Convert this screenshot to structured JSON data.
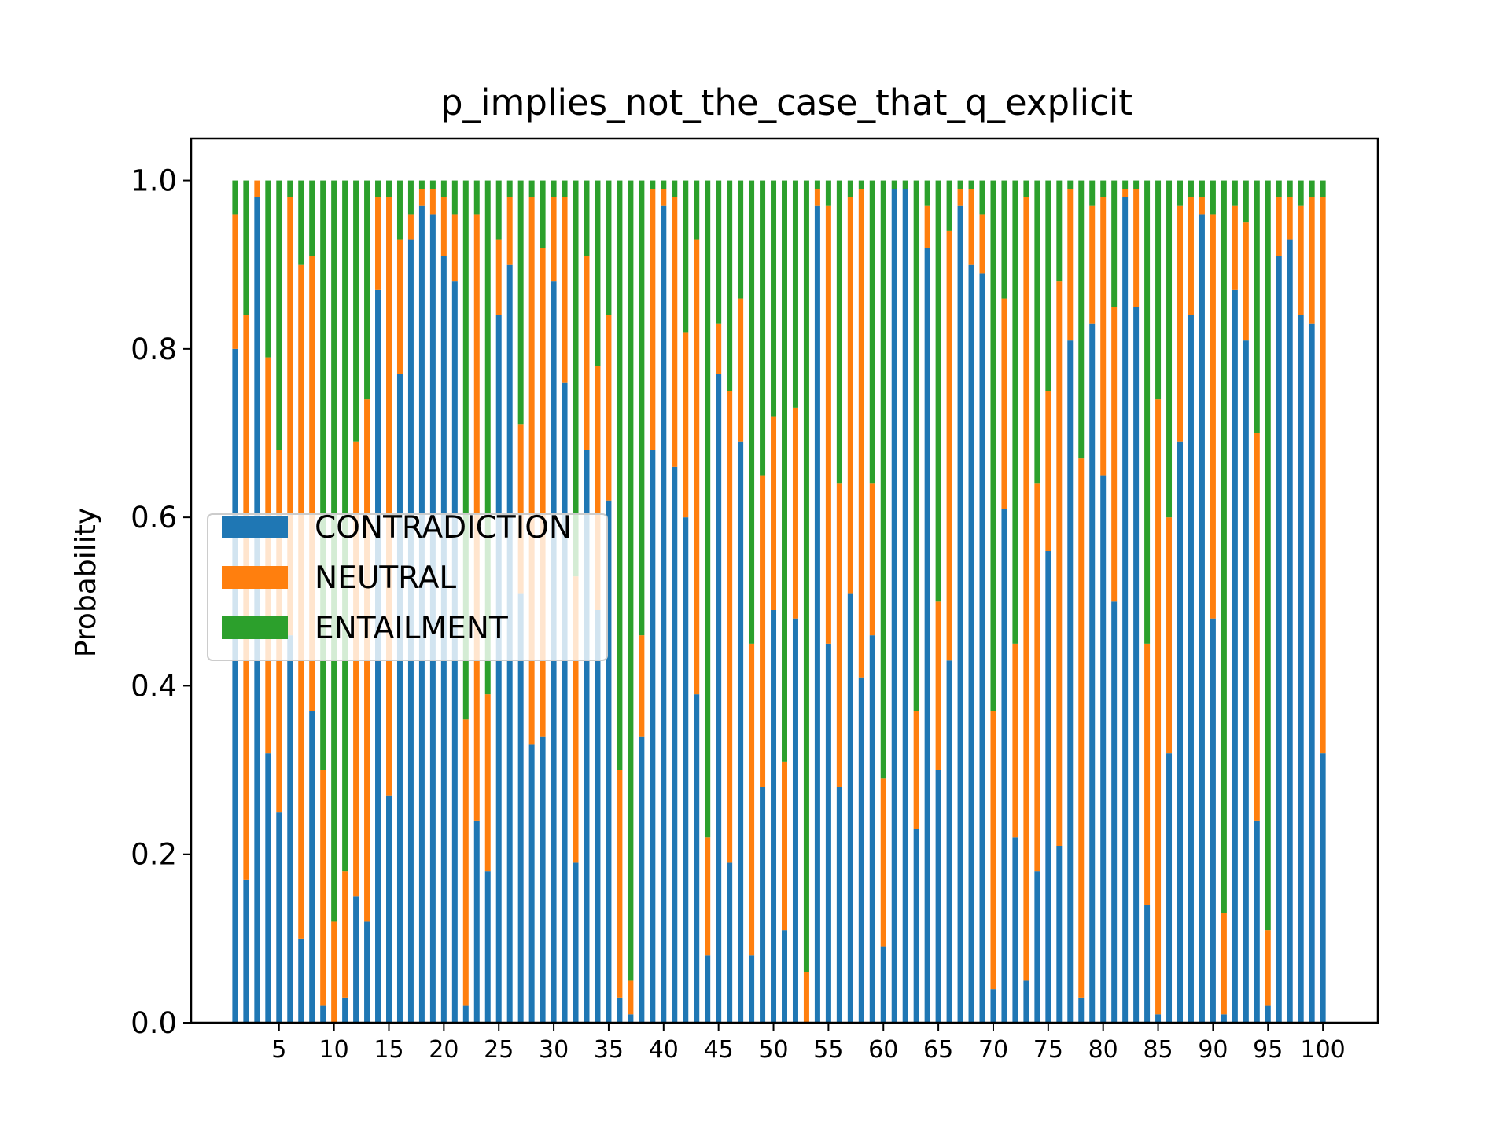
{
  "chart_data": {
    "type": "bar",
    "stacked": true,
    "title": "p_implies_not_the_case_that_q_explicit",
    "xlabel": "",
    "ylabel": "Probability",
    "ylim": [
      0,
      1.05
    ],
    "xlim": [
      -3,
      105
    ],
    "grid": false,
    "legend_position": "center-left",
    "yticks": [
      0.0,
      0.2,
      0.4,
      0.6,
      0.8,
      1.0
    ],
    "ytick_labels": [
      "0.0",
      "0.2",
      "0.4",
      "0.6",
      "0.8",
      "1.0"
    ],
    "xticks": [
      5,
      10,
      15,
      20,
      25,
      30,
      35,
      40,
      45,
      50,
      55,
      60,
      65,
      70,
      75,
      80,
      85,
      90,
      95,
      100
    ],
    "xtick_labels": [
      "5",
      "10",
      "15",
      "20",
      "25",
      "30",
      "35",
      "40",
      "45",
      "50",
      "55",
      "60",
      "65",
      "70",
      "75",
      "80",
      "85",
      "90",
      "95",
      "100"
    ],
    "x": [
      1,
      2,
      3,
      4,
      5,
      6,
      7,
      8,
      9,
      10,
      11,
      12,
      13,
      14,
      15,
      16,
      17,
      18,
      19,
      20,
      21,
      22,
      23,
      24,
      25,
      26,
      27,
      28,
      29,
      30,
      31,
      32,
      33,
      34,
      35,
      36,
      37,
      38,
      39,
      40,
      41,
      42,
      43,
      44,
      45,
      46,
      47,
      48,
      49,
      50,
      51,
      52,
      53,
      54,
      55,
      56,
      57,
      58,
      59,
      60,
      61,
      62,
      63,
      64,
      65,
      66,
      67,
      68,
      69,
      70,
      71,
      72,
      73,
      74,
      75,
      76,
      77,
      78,
      79,
      80,
      81,
      82,
      83,
      84,
      85,
      86,
      87,
      88,
      89,
      90,
      91,
      92,
      93,
      94,
      95,
      96,
      97,
      98,
      99,
      100
    ],
    "series": [
      {
        "name": "CONTRADICTION",
        "color": "#1f77b4",
        "values": [
          0.8,
          0.17,
          0.98,
          0.32,
          0.25,
          0.46,
          0.1,
          0.37,
          0.02,
          0.0,
          0.03,
          0.15,
          0.12,
          0.87,
          0.27,
          0.77,
          0.93,
          0.97,
          0.96,
          0.91,
          0.88,
          0.02,
          0.24,
          0.18,
          0.84,
          0.9,
          0.51,
          0.33,
          0.34,
          0.88,
          0.76,
          0.19,
          0.68,
          0.49,
          0.62,
          0.03,
          0.01,
          0.34,
          0.68,
          0.97,
          0.66,
          0.6,
          0.39,
          0.08,
          0.77,
          0.19,
          0.69,
          0.08,
          0.28,
          0.49,
          0.11,
          0.48,
          0.0,
          0.97,
          0.45,
          0.28,
          0.51,
          0.41,
          0.46,
          0.09,
          0.99,
          0.99,
          0.23,
          0.92,
          0.3,
          0.43,
          0.97,
          0.9,
          0.89,
          0.04,
          0.61,
          0.22,
          0.05,
          0.18,
          0.56,
          0.21,
          0.81,
          0.03,
          0.83,
          0.65,
          0.5,
          0.98,
          0.85,
          0.14,
          0.01,
          0.32,
          0.69,
          0.84,
          0.96,
          0.48,
          0.01,
          0.87,
          0.81,
          0.24,
          0.02,
          0.91,
          0.93,
          0.84,
          0.83,
          0.32
        ]
      },
      {
        "name": "NEUTRAL",
        "color": "#ff7f0e",
        "values": [
          0.16,
          0.67,
          0.02,
          0.47,
          0.43,
          0.52,
          0.8,
          0.54,
          0.28,
          0.12,
          0.15,
          0.54,
          0.62,
          0.11,
          0.71,
          0.16,
          0.03,
          0.02,
          0.03,
          0.07,
          0.08,
          0.34,
          0.72,
          0.21,
          0.09,
          0.08,
          0.2,
          0.65,
          0.58,
          0.1,
          0.22,
          0.34,
          0.23,
          0.29,
          0.22,
          0.27,
          0.04,
          0.12,
          0.31,
          0.02,
          0.32,
          0.22,
          0.54,
          0.14,
          0.06,
          0.56,
          0.17,
          0.37,
          0.37,
          0.23,
          0.2,
          0.25,
          0.06,
          0.02,
          0.52,
          0.36,
          0.47,
          0.58,
          0.18,
          0.2,
          0.0,
          0.0,
          0.14,
          0.05,
          0.2,
          0.51,
          0.02,
          0.09,
          0.07,
          0.33,
          0.25,
          0.23,
          0.93,
          0.46,
          0.19,
          0.67,
          0.18,
          0.64,
          0.14,
          0.33,
          0.35,
          0.01,
          0.14,
          0.31,
          0.73,
          0.28,
          0.28,
          0.14,
          0.02,
          0.48,
          0.12,
          0.1,
          0.14,
          0.46,
          0.09,
          0.07,
          0.05,
          0.13,
          0.15,
          0.66
        ]
      },
      {
        "name": "ENTAILMENT",
        "color": "#2ca02c",
        "values": [
          0.04,
          0.16,
          0.0,
          0.21,
          0.32,
          0.02,
          0.1,
          0.09,
          0.7,
          0.88,
          0.82,
          0.31,
          0.26,
          0.02,
          0.02,
          0.07,
          0.04,
          0.01,
          0.01,
          0.02,
          0.04,
          0.64,
          0.04,
          0.61,
          0.07,
          0.02,
          0.29,
          0.02,
          0.08,
          0.02,
          0.02,
          0.47,
          0.09,
          0.22,
          0.16,
          0.7,
          0.95,
          0.54,
          0.01,
          0.01,
          0.02,
          0.18,
          0.07,
          0.78,
          0.17,
          0.25,
          0.14,
          0.55,
          0.35,
          0.28,
          0.69,
          0.27,
          0.94,
          0.01,
          0.03,
          0.36,
          0.02,
          0.01,
          0.36,
          0.71,
          0.01,
          0.01,
          0.63,
          0.03,
          0.5,
          0.06,
          0.01,
          0.01,
          0.04,
          0.63,
          0.14,
          0.55,
          0.02,
          0.36,
          0.25,
          0.12,
          0.01,
          0.33,
          0.03,
          0.02,
          0.15,
          0.01,
          0.01,
          0.55,
          0.26,
          0.4,
          0.03,
          0.02,
          0.02,
          0.04,
          0.87,
          0.03,
          0.05,
          0.3,
          0.89,
          0.02,
          0.02,
          0.03,
          0.02,
          0.02
        ]
      }
    ]
  }
}
